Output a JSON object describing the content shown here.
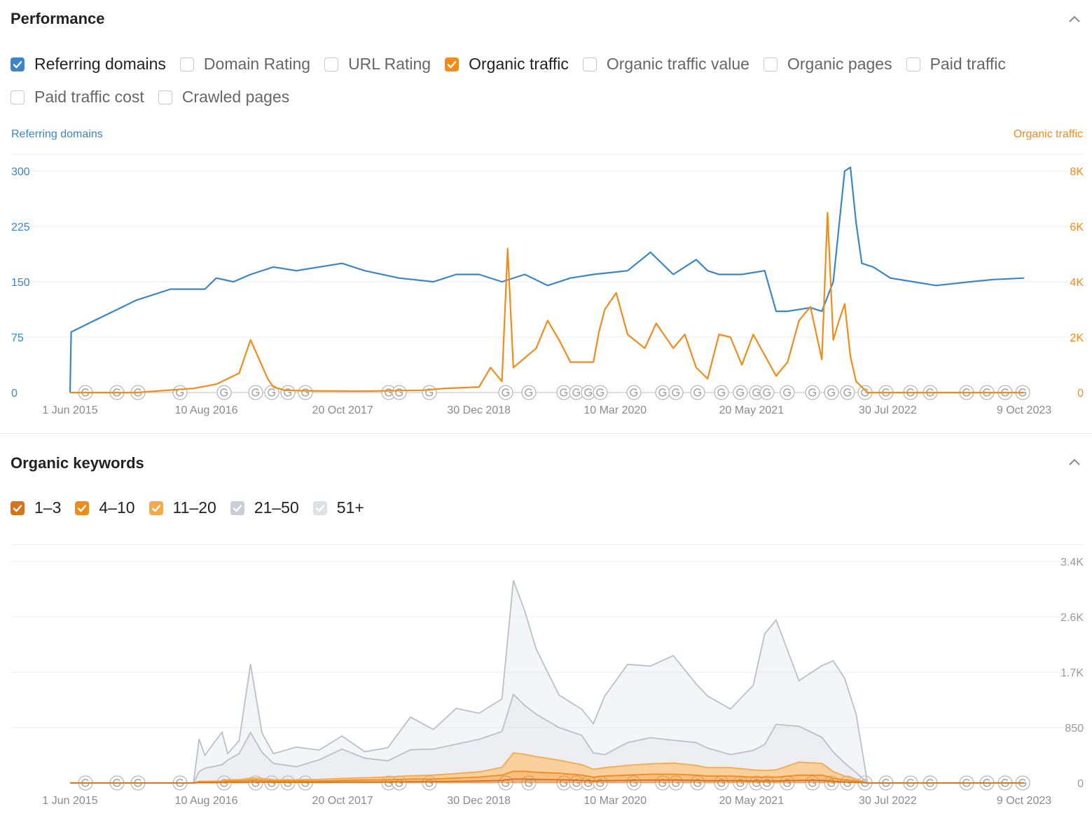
{
  "colors": {
    "blue": "#3a86c8",
    "orange": "#f28b1a",
    "orange_dark": "#d8731a",
    "orange_light": "#f5a94d",
    "gray": "#c9ced6",
    "gray_light": "#dde1e6",
    "grid": "#ececec",
    "tick": "#8a8a8a"
  },
  "performance": {
    "title": "Performance",
    "metrics": [
      {
        "label": "Referring domains",
        "checked": true,
        "color": "#3a86c8"
      },
      {
        "label": "Domain Rating",
        "checked": false
      },
      {
        "label": "URL Rating",
        "checked": false
      },
      {
        "label": "Organic traffic",
        "checked": true,
        "color": "#f28b1a"
      },
      {
        "label": "Organic traffic value",
        "checked": false
      },
      {
        "label": "Organic pages",
        "checked": false
      },
      {
        "label": "Paid traffic",
        "checked": false
      },
      {
        "label": "Paid traffic cost",
        "checked": false
      },
      {
        "label": "Crawled pages",
        "checked": false
      }
    ],
    "left_axis_title": "Referring domains",
    "right_axis_title": "Organic traffic"
  },
  "keywords": {
    "title": "Organic keywords",
    "positions": [
      {
        "label": "1–3",
        "checked": true,
        "color": "#d8731a"
      },
      {
        "label": "4–10",
        "checked": true,
        "color": "#f28b1a"
      },
      {
        "label": "11–20",
        "checked": true,
        "color": "#f5a94d"
      },
      {
        "label": "21–50",
        "checked": true,
        "color": "#c9ced6"
      },
      {
        "label": "51+",
        "checked": true,
        "color": "#dde1e6"
      }
    ]
  },
  "chart_data": [
    {
      "type": "line",
      "title": "",
      "x_tick_labels": [
        "1 Jun 2015",
        "10 Aug 2016",
        "20 Oct 2017",
        "30 Dec 2018",
        "10 Mar 2020",
        "20 May 2021",
        "30 Jul 2022",
        "9 Oct 2023"
      ],
      "y_left": {
        "label": "Referring domains",
        "ticks": [
          "0",
          "75",
          "150",
          "225",
          "300"
        ],
        "range": [
          0,
          300
        ]
      },
      "y_right": {
        "label": "Organic traffic",
        "ticks": [
          "0",
          "2K",
          "4K",
          "6K",
          "8K"
        ],
        "range": [
          0,
          8000
        ]
      },
      "x_range": [
        2015.42,
        2023.77
      ],
      "grid": true,
      "series": [
        {
          "name": "Referring domains",
          "axis": "left",
          "color": "#3a86c8",
          "x": [
            2015.42,
            2015.43,
            2015.6,
            2015.8,
            2016.0,
            2016.3,
            2016.6,
            2016.7,
            2016.85,
            2017.0,
            2017.2,
            2017.4,
            2017.6,
            2017.8,
            2018.0,
            2018.3,
            2018.6,
            2018.8,
            2019.0,
            2019.2,
            2019.4,
            2019.6,
            2019.8,
            2020.0,
            2020.3,
            2020.5,
            2020.7,
            2020.9,
            2021.0,
            2021.1,
            2021.3,
            2021.5,
            2021.6,
            2021.7,
            2021.9,
            2022.0,
            2022.1,
            2022.2,
            2022.25,
            2022.3,
            2022.35,
            2022.45,
            2022.6,
            2022.8,
            2023.0,
            2023.3,
            2023.5,
            2023.77
          ],
          "values": [
            0,
            82,
            95,
            110,
            125,
            140,
            140,
            155,
            150,
            160,
            170,
            165,
            170,
            175,
            165,
            155,
            150,
            160,
            160,
            150,
            160,
            145,
            155,
            160,
            165,
            190,
            160,
            180,
            165,
            160,
            160,
            165,
            110,
            110,
            115,
            110,
            150,
            300,
            305,
            230,
            175,
            170,
            155,
            150,
            145,
            150,
            153,
            155
          ]
        },
        {
          "name": "Organic traffic",
          "axis": "right",
          "color": "#f28b1a",
          "x": [
            2015.42,
            2016.0,
            2016.5,
            2016.7,
            2016.9,
            2017.0,
            2017.15,
            2017.2,
            2017.3,
            2017.5,
            2018.0,
            2018.5,
            2018.7,
            2019.0,
            2019.1,
            2019.2,
            2019.25,
            2019.3,
            2019.5,
            2019.6,
            2019.7,
            2019.8,
            2020.0,
            2020.05,
            2020.1,
            2020.2,
            2020.3,
            2020.45,
            2020.55,
            2020.7,
            2020.8,
            2020.9,
            2021.0,
            2021.1,
            2021.2,
            2021.3,
            2021.4,
            2021.6,
            2021.7,
            2021.8,
            2021.9,
            2022.0,
            2022.05,
            2022.1,
            2022.15,
            2022.2,
            2022.25,
            2022.3,
            2022.4,
            2023.77
          ],
          "values": [
            0,
            0,
            150,
            300,
            700,
            1900,
            500,
            200,
            80,
            60,
            50,
            80,
            150,
            200,
            900,
            400,
            5200,
            900,
            1600,
            2600,
            1900,
            1100,
            1100,
            2200,
            3000,
            3600,
            2100,
            1600,
            2500,
            1600,
            2100,
            900,
            500,
            2100,
            2000,
            1000,
            2100,
            600,
            1100,
            2600,
            3100,
            1200,
            6500,
            1900,
            2600,
            3200,
            1300,
            400,
            0,
            0
          ]
        }
      ]
    },
    {
      "type": "area",
      "title": "",
      "stacked": true,
      "x_tick_labels": [
        "1 Jun 2015",
        "10 Aug 2016",
        "20 Oct 2017",
        "30 Dec 2018",
        "10 Mar 2020",
        "20 May 2021",
        "30 Jul 2022",
        "9 Oct 2023"
      ],
      "y": {
        "ticks": [
          "0",
          "850",
          "1.7K",
          "2.6K",
          "3.4K"
        ],
        "range": [
          0,
          3400
        ]
      },
      "x_range": [
        2015.42,
        2023.77
      ],
      "grid": true,
      "x": [
        2015.42,
        2016.5,
        2016.55,
        2016.6,
        2016.75,
        2016.8,
        2016.9,
        2017.0,
        2017.1,
        2017.2,
        2017.4,
        2017.6,
        2017.8,
        2018.0,
        2018.2,
        2018.4,
        2018.6,
        2018.8,
        2019.0,
        2019.2,
        2019.3,
        2019.4,
        2019.5,
        2019.7,
        2019.9,
        2020.0,
        2020.1,
        2020.3,
        2020.5,
        2020.7,
        2020.9,
        2021.0,
        2021.2,
        2021.4,
        2021.5,
        2021.6,
        2021.8,
        2022.0,
        2022.1,
        2022.2,
        2022.3,
        2022.4,
        2023.77
      ],
      "series": [
        {
          "name": "1–3",
          "color": "#d8731a",
          "values": [
            0,
            0,
            5,
            5,
            5,
            10,
            10,
            15,
            15,
            10,
            10,
            10,
            15,
            15,
            15,
            20,
            20,
            25,
            30,
            40,
            60,
            60,
            55,
            50,
            40,
            30,
            35,
            40,
            45,
            45,
            40,
            35,
            35,
            30,
            30,
            30,
            40,
            40,
            25,
            15,
            10,
            0,
            0
          ]
        },
        {
          "name": "4–10",
          "color": "#f28b1a",
          "values": [
            0,
            0,
            10,
            10,
            10,
            20,
            20,
            30,
            25,
            20,
            20,
            20,
            25,
            30,
            35,
            40,
            40,
            50,
            60,
            80,
            120,
            120,
            110,
            100,
            80,
            60,
            70,
            80,
            90,
            90,
            80,
            70,
            70,
            60,
            60,
            60,
            80,
            80,
            50,
            30,
            20,
            0,
            0
          ]
        },
        {
          "name": "11–20",
          "color": "#f5a94d",
          "values": [
            0,
            0,
            10,
            10,
            15,
            20,
            20,
            30,
            30,
            20,
            20,
            25,
            30,
            35,
            40,
            50,
            60,
            70,
            80,
            120,
            280,
            260,
            240,
            200,
            160,
            120,
            130,
            150,
            160,
            170,
            150,
            130,
            130,
            110,
            100,
            110,
            200,
            180,
            100,
            60,
            30,
            0,
            0
          ]
        },
        {
          "name": "21–50",
          "color": "#c9ced6",
          "values": [
            0,
            0,
            150,
            200,
            250,
            300,
            400,
            700,
            400,
            250,
            200,
            300,
            450,
            300,
            250,
            400,
            400,
            450,
            500,
            550,
            900,
            750,
            650,
            500,
            450,
            250,
            200,
            350,
            400,
            350,
            350,
            300,
            200,
            300,
            400,
            700,
            550,
            400,
            300,
            200,
            100,
            0,
            0
          ]
        },
        {
          "name": "51+",
          "color": "#dde1e6",
          "values": [
            0,
            0,
            500,
            200,
            500,
            100,
            200,
            1050,
            300,
            150,
            300,
            150,
            200,
            100,
            200,
            500,
            300,
            550,
            400,
            500,
            1750,
            1450,
            1000,
            500,
            400,
            450,
            900,
            1200,
            1100,
            1300,
            900,
            800,
            700,
            1000,
            1700,
            1600,
            700,
            1100,
            1400,
            1300,
            900,
            0,
            0
          ]
        }
      ]
    }
  ]
}
